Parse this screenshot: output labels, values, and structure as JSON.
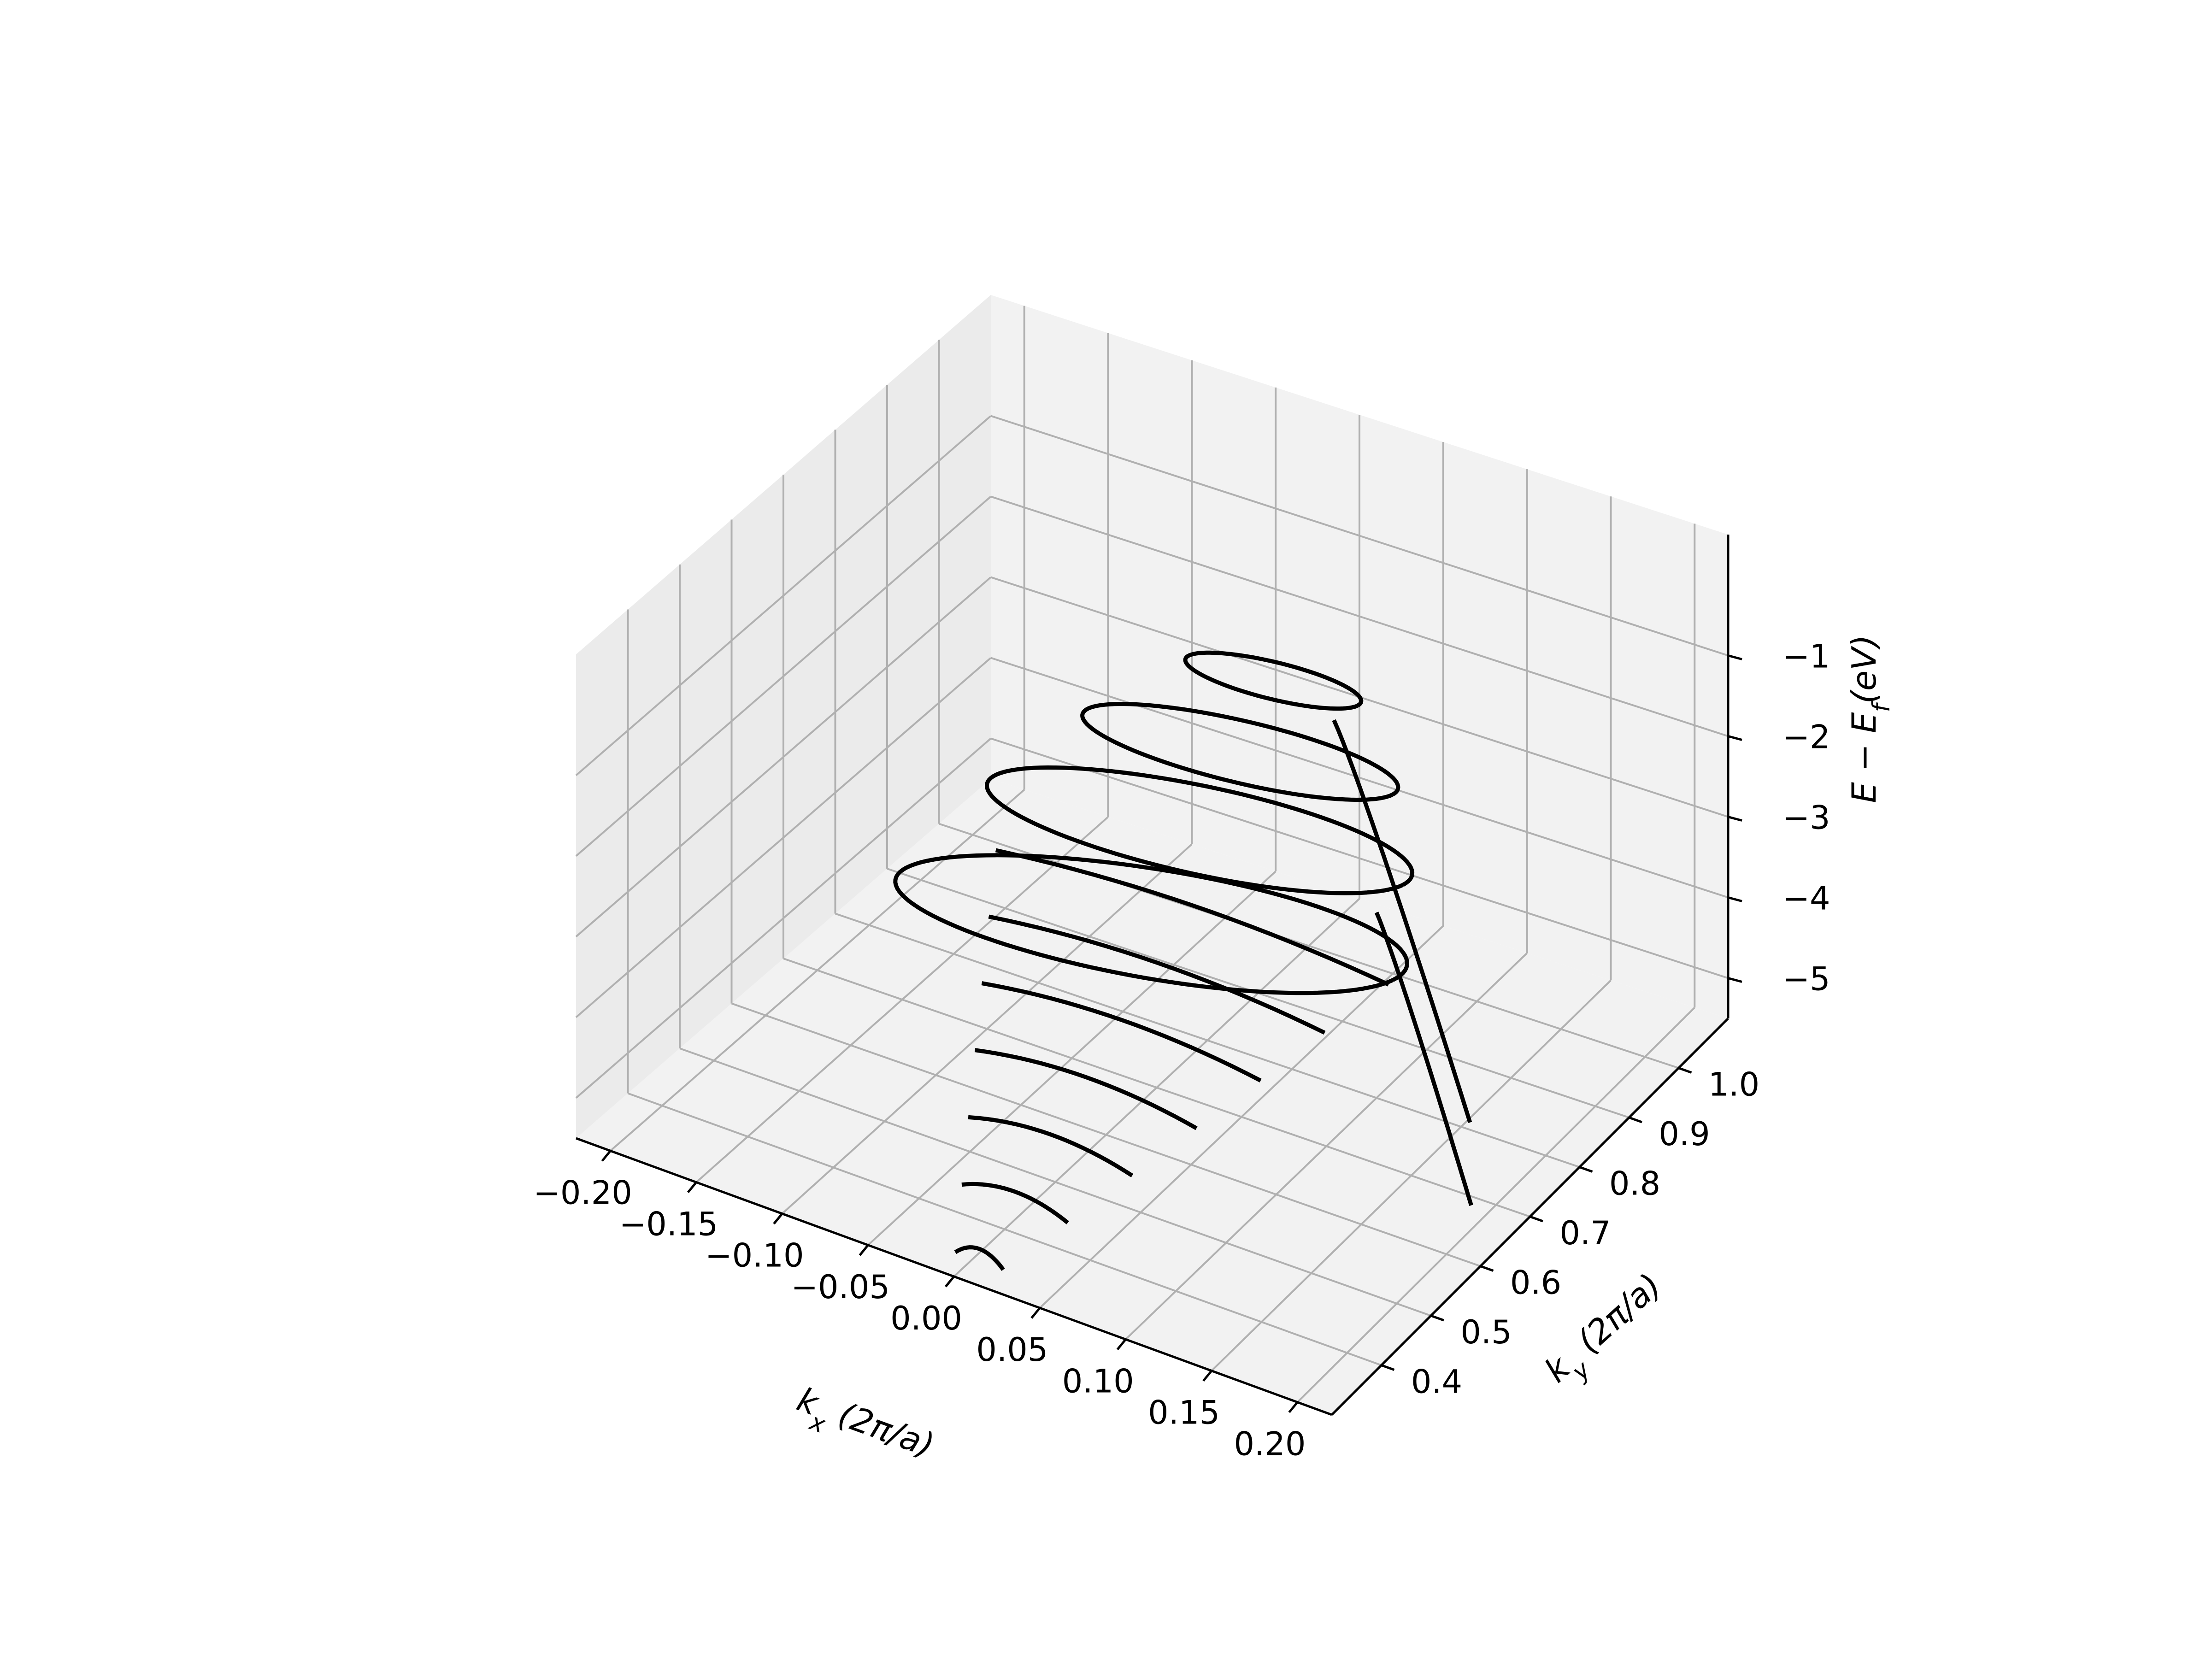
{
  "chart_data": {
    "type": "line-3d",
    "xlabel": "k_x (2π/a)",
    "ylabel": "k_y (2π/a)",
    "zlabel": "E − E_f(eV)",
    "x_ticks": [
      "−0.20",
      "−0.15",
      "−0.10",
      "−0.05",
      "0.00",
      "0.05",
      "0.10",
      "0.15",
      "0.20"
    ],
    "y_ticks": [
      "0.4",
      "0.5",
      "0.6",
      "0.7",
      "0.8",
      "0.9",
      "1.0"
    ],
    "z_ticks": [
      "−1",
      "−2",
      "−3",
      "−4",
      "−5"
    ],
    "xlim": [
      -0.22,
      0.22
    ],
    "ylim": [
      0.3,
      1.1
    ],
    "zlim": [
      -5.5,
      0.5
    ],
    "grid": true,
    "line_color": "#000000",
    "pane_colors": {
      "floor": "#f2f2f2",
      "back": "#f2f2f2",
      "side": "#ebebeb"
    },
    "series": [
      {
        "kind": "segment",
        "ky": 0.35,
        "E": -5.6,
        "x": [
          -0.014,
          0.014
        ]
      },
      {
        "kind": "segment",
        "ky": 0.42,
        "E": -5.3,
        "x": [
          -0.031,
          0.031
        ]
      },
      {
        "kind": "segment",
        "ky": 0.49,
        "E": -5.0,
        "x": [
          -0.048,
          0.048
        ]
      },
      {
        "kind": "segment",
        "ky": 0.56,
        "E": -4.7,
        "x": [
          -0.065,
          0.065
        ]
      },
      {
        "kind": "segment",
        "ky": 0.63,
        "E": -4.4,
        "x": [
          -0.082,
          0.082
        ]
      },
      {
        "kind": "segment",
        "ky": 0.7,
        "E": -4.1,
        "x": [
          -0.099,
          0.099
        ]
      },
      {
        "kind": "segment",
        "ky": 0.77,
        "E": -3.8,
        "x": [
          -0.116,
          0.116
        ]
      },
      {
        "kind": "loop",
        "ky": 0.86,
        "E": -3.4,
        "rx": 0.142,
        "shift": 0.34,
        "span": 0.52,
        "skew": 1.3
      },
      {
        "kind": "loop",
        "ky": 0.91,
        "E": -2.8,
        "rx": 0.12,
        "shift": 0.25,
        "span": 0.36,
        "skew": 0.7
      },
      {
        "kind": "loop",
        "ky": 0.95,
        "E": -2.3,
        "rx": 0.09,
        "shift": 0.17,
        "span": 0.24,
        "skew": 0.4
      },
      {
        "kind": "loop",
        "ky": 0.98,
        "E": -1.8,
        "rx": 0.05,
        "shift": 0.1,
        "span": 0.14,
        "skew": 0.15
      },
      {
        "kind": "branch",
        "ky": [
          0.95,
          0.75
        ],
        "E": [
          -2.2,
          -5.0
        ],
        "x": [
          0.03,
          0.17
        ]
      },
      {
        "kind": "branch",
        "ky": [
          0.8,
          0.65
        ],
        "E": [
          -3.2,
          -5.2
        ],
        "x": [
          0.1,
          0.2
        ]
      }
    ]
  }
}
